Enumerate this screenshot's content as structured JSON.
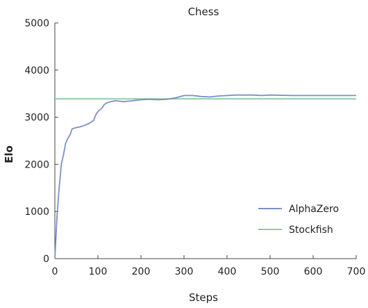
{
  "chart_data": {
    "type": "line",
    "title": "Chess",
    "xlabel": "Steps",
    "ylabel": "Elo",
    "xlim": [
      0,
      700
    ],
    "ylim": [
      0,
      5000
    ],
    "x_ticks": [
      0,
      100,
      200,
      300,
      400,
      500,
      600,
      700
    ],
    "y_ticks": [
      0,
      1000,
      2000,
      3000,
      4000,
      5000
    ],
    "x_tick_labels": [
      "0",
      "100",
      "200",
      "300",
      "400",
      "500",
      "600",
      "700"
    ],
    "y_tick_labels": [
      "0",
      "1000",
      "2000",
      "3000",
      "4000",
      "5000"
    ],
    "grid": false,
    "legend": "bottom-right",
    "series": [
      {
        "name": "AlphaZero",
        "color": "#7b8fc4",
        "x": [
          0,
          5,
          10,
          15,
          20,
          25,
          30,
          35,
          40,
          45,
          50,
          60,
          70,
          80,
          90,
          95,
          100,
          110,
          115,
          120,
          130,
          140,
          150,
          160,
          170,
          180,
          190,
          200,
          220,
          240,
          260,
          280,
          300,
          320,
          340,
          360,
          380,
          400,
          420,
          440,
          460,
          480,
          500,
          550,
          600,
          650,
          700
        ],
        "values": [
          0,
          900,
          1500,
          2000,
          2200,
          2450,
          2550,
          2620,
          2750,
          2770,
          2780,
          2800,
          2830,
          2870,
          2930,
          3050,
          3120,
          3200,
          3270,
          3300,
          3330,
          3350,
          3340,
          3330,
          3340,
          3350,
          3360,
          3370,
          3380,
          3370,
          3380,
          3410,
          3460,
          3460,
          3440,
          3430,
          3450,
          3460,
          3470,
          3470,
          3470,
          3460,
          3470,
          3460,
          3460,
          3460,
          3460
        ]
      },
      {
        "name": "Stockfish",
        "color": "#8cc9a4",
        "x": [
          0,
          700
        ],
        "values": [
          3390,
          3390
        ]
      }
    ]
  }
}
